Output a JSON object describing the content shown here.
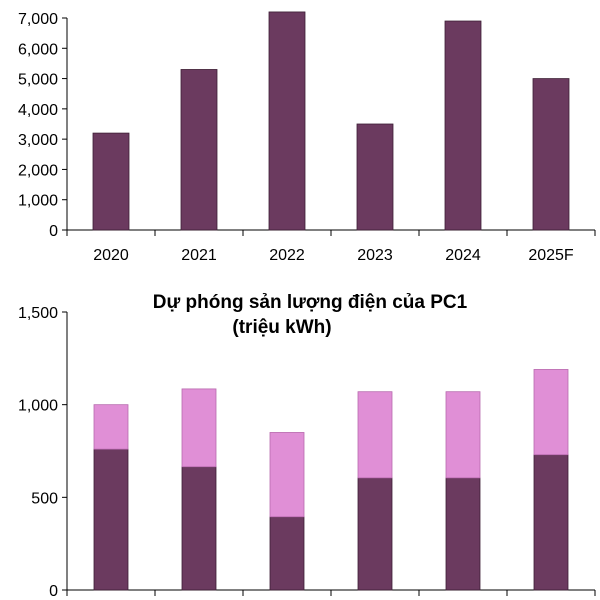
{
  "chart_data": [
    {
      "type": "bar",
      "title": "",
      "xlabel": "",
      "ylabel": "",
      "categories": [
        "2020",
        "2021",
        "2022",
        "2023",
        "2024",
        "2025F"
      ],
      "values": [
        3200,
        5300,
        7200,
        3500,
        6900,
        5000
      ],
      "ylim": [
        0,
        7000
      ],
      "yticks": [
        "0",
        "1,000",
        "2,000",
        "3,000",
        "4,000",
        "5,000",
        "6,000",
        "7,000"
      ],
      "ytick_values": [
        0,
        1000,
        2000,
        3000,
        4000,
        5000,
        6000,
        7000
      ],
      "grid": false,
      "legend": "none",
      "colors": {
        "bar": "#6b3a5f"
      }
    },
    {
      "type": "bar",
      "stacked": true,
      "title": "Dự phóng sản lượng điện của PC1",
      "subtitle": "(triệu kWh)",
      "xlabel": "",
      "ylabel": "",
      "categories": [
        "",
        "",
        "",
        "",
        "",
        ""
      ],
      "series": [
        {
          "values": [
            760,
            665,
            395,
            605,
            605,
            730
          ]
        },
        {
          "values": [
            240,
            420,
            455,
            465,
            465,
            460
          ]
        }
      ],
      "ylim": [
        0,
        1500
      ],
      "yticks": [
        "0",
        "500",
        "1,000",
        "1,500"
      ],
      "ytick_values": [
        0,
        500,
        1000,
        1500
      ],
      "grid": false,
      "legend": "none",
      "colors": {
        "series": [
          "#6b3a5f",
          "#e08fd6"
        ]
      }
    }
  ]
}
